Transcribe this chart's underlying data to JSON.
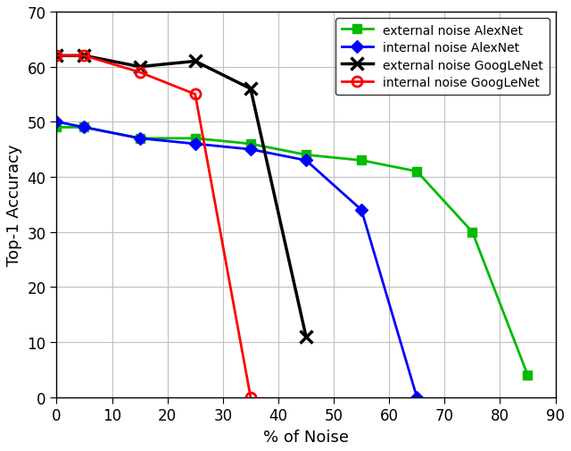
{
  "ext_alex_x": [
    0,
    5,
    15,
    25,
    35,
    45,
    55,
    65,
    75,
    85
  ],
  "ext_alex_y": [
    49,
    49,
    47,
    47,
    46,
    44,
    43,
    41,
    30,
    4
  ],
  "int_alex_x": [
    0,
    5,
    15,
    25,
    35,
    45,
    55,
    65
  ],
  "int_alex_y": [
    50,
    49,
    47,
    46,
    45,
    43,
    34,
    0
  ],
  "ext_goog_x": [
    0,
    5,
    15,
    25,
    35,
    45
  ],
  "ext_goog_y": [
    62,
    62,
    60,
    61,
    56,
    11
  ],
  "int_goog_x": [
    0,
    5,
    15,
    25,
    35
  ],
  "int_goog_y": [
    62,
    62,
    59,
    55,
    0
  ],
  "ext_alex_color": "#00BB00",
  "int_alex_color": "#0000FF",
  "ext_goog_color": "#000000",
  "int_goog_color": "#FF0000",
  "xlim": [
    0,
    90
  ],
  "ylim": [
    0,
    70
  ],
  "xticks": [
    0,
    10,
    20,
    30,
    40,
    50,
    60,
    70,
    80,
    90
  ],
  "yticks": [
    0,
    10,
    20,
    30,
    40,
    50,
    60,
    70
  ],
  "xlabel": "% of Noise",
  "ylabel": "Top-1 Accuracy",
  "legend_labels": [
    "external noise AlexNet",
    "internal noise AlexNet",
    "external noise GoogLeNet",
    "internal noise GoogLeNet"
  ],
  "figsize": [
    6.4,
    5.06
  ],
  "dpi": 100
}
